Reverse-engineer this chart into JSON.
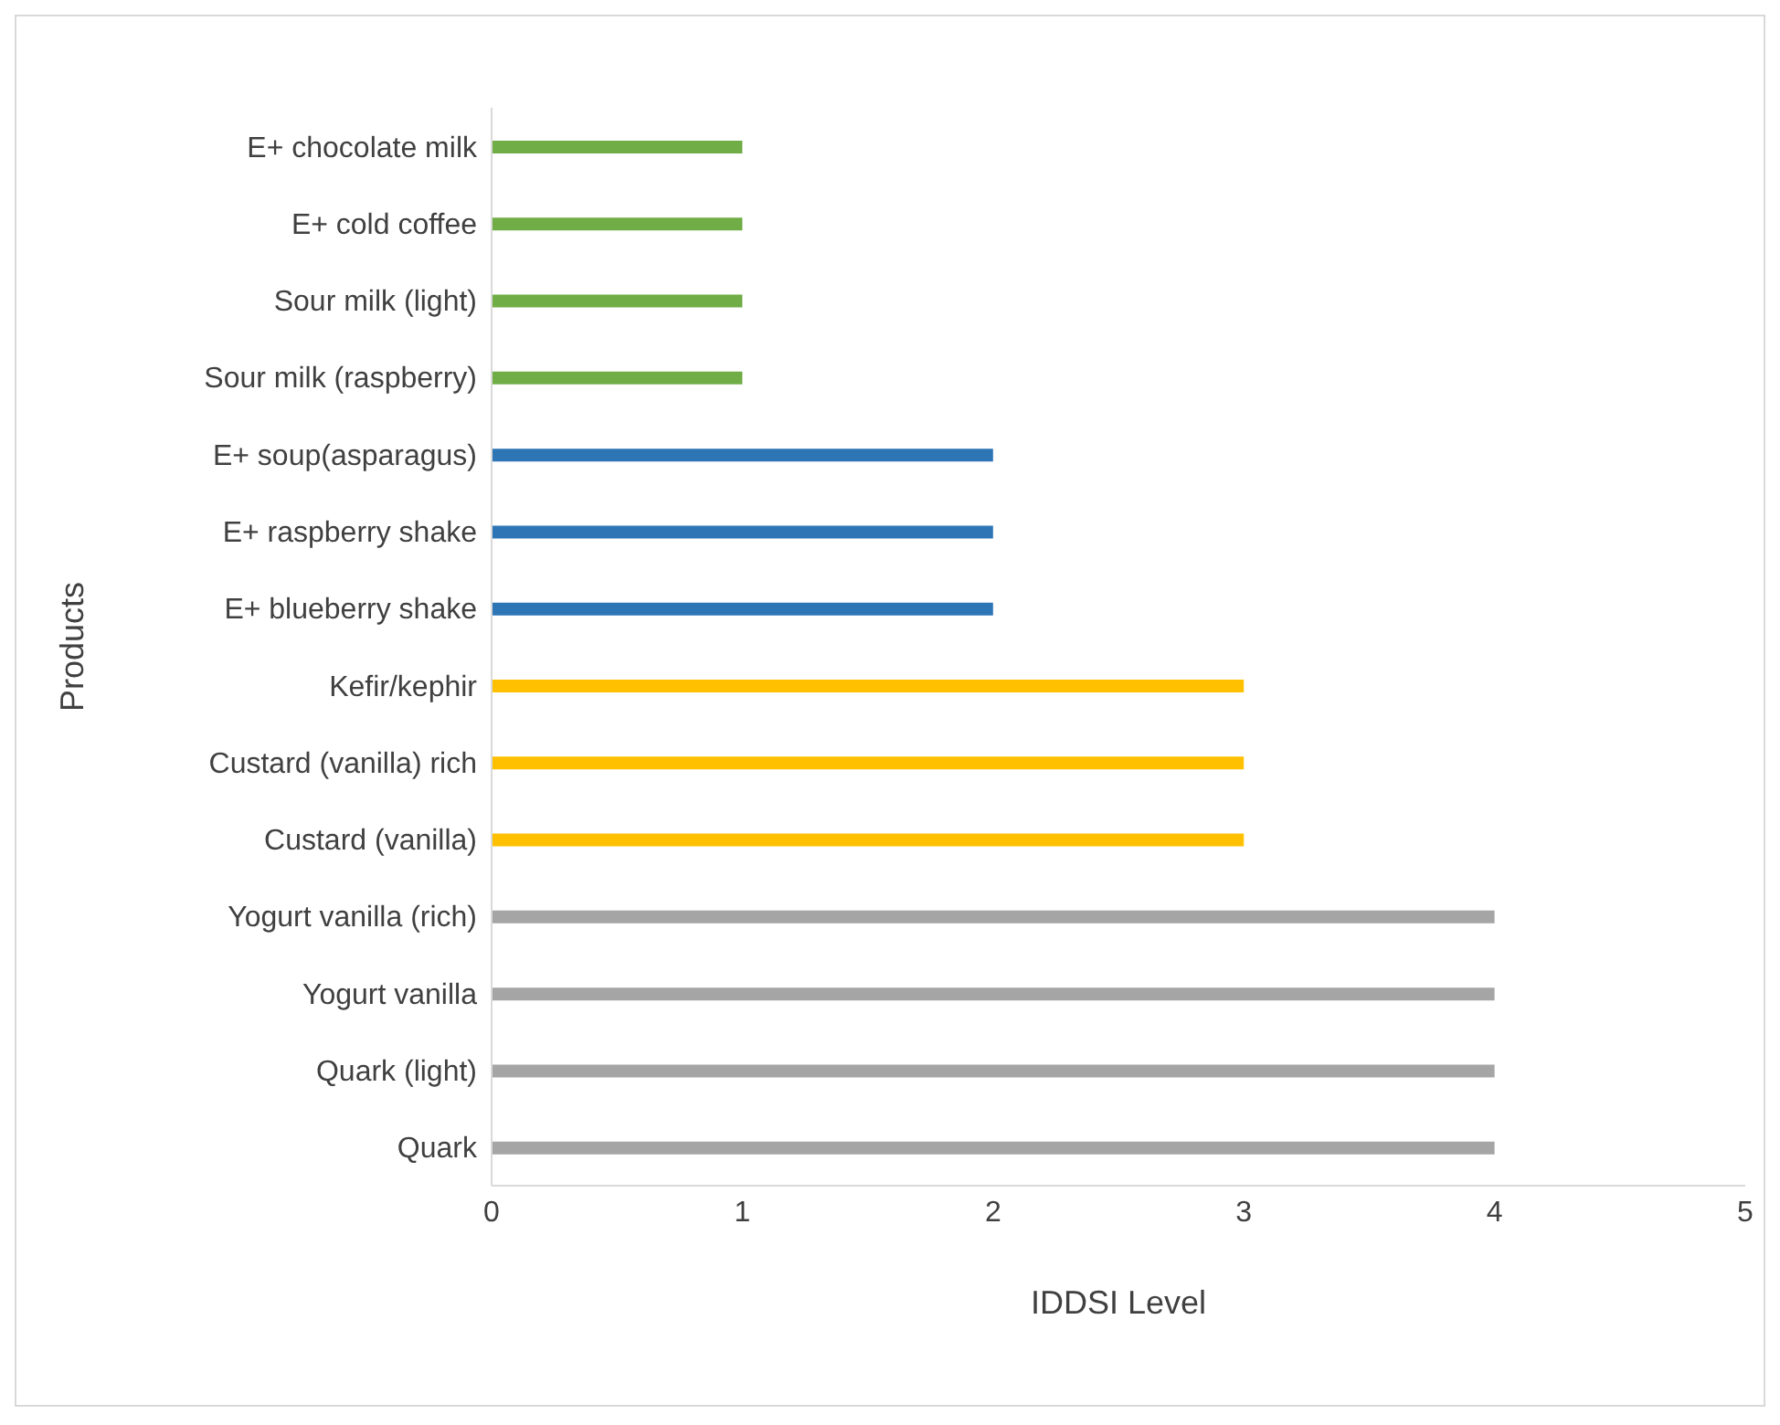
{
  "chart_data": {
    "type": "bar",
    "orientation": "horizontal",
    "xlabel": "IDDSI Level",
    "ylabel": "Products",
    "categories": [
      "E+ chocolate milk",
      "E+ cold coffee",
      "Sour milk (light)",
      "Sour milk (raspberry)",
      "E+ soup(asparagus)",
      "E+ raspberry shake",
      "E+ blueberry shake",
      "Kefir/kephir",
      "Custard (vanilla) rich",
      "Custard (vanilla)",
      "Yogurt vanilla (rich)",
      "Yogurt vanilla",
      "Quark (light)",
      "Quark"
    ],
    "values": [
      1,
      1,
      1,
      1,
      2,
      2,
      2,
      3,
      3,
      3,
      4,
      4,
      4,
      4
    ],
    "colors": [
      "#70ad47",
      "#70ad47",
      "#70ad47",
      "#70ad47",
      "#2e75b6",
      "#2e75b6",
      "#2e75b6",
      "#ffc000",
      "#ffc000",
      "#ffc000",
      "#a5a5a5",
      "#a5a5a5",
      "#a5a5a5",
      "#a5a5a5"
    ],
    "xlim": [
      0,
      5
    ],
    "xticks": [
      0,
      1,
      2,
      3,
      4,
      5
    ],
    "grid": false,
    "legend": false
  }
}
